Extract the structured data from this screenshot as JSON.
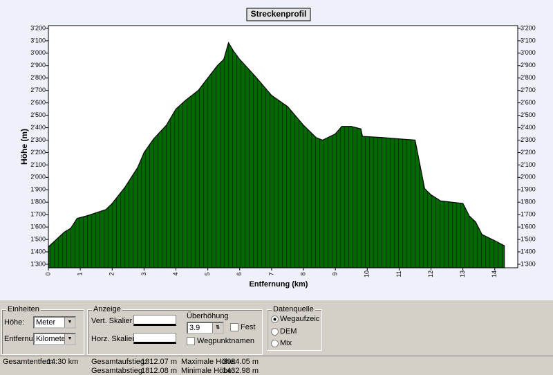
{
  "chart_data": {
    "type": "area",
    "title": "Streckenprofil",
    "xlabel": "Entfernung (km)",
    "ylabel": "Höhe (m)",
    "color": "#006a00",
    "x": [
      0,
      0.5,
      0.7,
      0.9,
      1.2,
      1.8,
      2.0,
      2.4,
      2.8,
      3.0,
      3.3,
      3.7,
      4.0,
      4.3,
      4.7,
      5.0,
      5.3,
      5.5,
      5.65,
      5.8,
      6.0,
      6.5,
      7.0,
      7.5,
      8.0,
      8.4,
      8.6,
      9.0,
      9.2,
      9.5,
      9.8,
      9.85,
      10.5,
      11.0,
      11.5,
      11.8,
      12.0,
      12.3,
      13.0,
      13.2,
      13.4,
      13.6,
      14.0,
      14.3
    ],
    "values": [
      1440,
      1560,
      1590,
      1670,
      1690,
      1740,
      1790,
      1920,
      2080,
      2200,
      2310,
      2420,
      2550,
      2620,
      2700,
      2800,
      2900,
      2950,
      3084,
      3020,
      2950,
      2810,
      2660,
      2570,
      2420,
      2320,
      2300,
      2350,
      2410,
      2410,
      2390,
      2330,
      2320,
      2310,
      2300,
      1910,
      1860,
      1810,
      1790,
      1690,
      1640,
      1540,
      1490,
      1450
    ],
    "xlim": [
      0,
      14.72
    ],
    "ylim": [
      1272,
      3222
    ],
    "xticks": [
      0,
      1,
      2,
      3,
      4,
      5,
      6,
      7,
      8,
      9,
      10,
      11,
      12,
      13,
      14
    ],
    "yticks": [
      {
        "value": 1300,
        "label": "1'300"
      },
      {
        "value": 1400,
        "label": "1'400"
      },
      {
        "value": 1500,
        "label": "1'500"
      },
      {
        "value": 1600,
        "label": "1'600"
      },
      {
        "value": 1700,
        "label": "1'700"
      },
      {
        "value": 1800,
        "label": "1'800"
      },
      {
        "value": 1900,
        "label": "1'900"
      },
      {
        "value": 2000,
        "label": "2'000"
      },
      {
        "value": 2100,
        "label": "2'100"
      },
      {
        "value": 2200,
        "label": "2'200"
      },
      {
        "value": 2300,
        "label": "2'300"
      },
      {
        "value": 2400,
        "label": "2'400"
      },
      {
        "value": 2500,
        "label": "2'500"
      },
      {
        "value": 2600,
        "label": "2'600"
      },
      {
        "value": 2700,
        "label": "2'700"
      },
      {
        "value": 2800,
        "label": "2'800"
      },
      {
        "value": 2900,
        "label": "2'900"
      },
      {
        "value": 3000,
        "label": "3'000"
      },
      {
        "value": 3100,
        "label": "3'100"
      },
      {
        "value": 3200,
        "label": "3'200"
      }
    ]
  },
  "panel": {
    "units": {
      "title": "Einheiten",
      "height_label": "Höhe:",
      "height_value": "Meter",
      "dist_label": "Entfernung:",
      "dist_value": "Kilometer"
    },
    "display": {
      "title": "Anzeige",
      "vert": "Vert. Skalier",
      "horz": "Horz. Skalier",
      "exag_label": "Überhöhung",
      "exag_value": "3.9",
      "fix": "Festst",
      "waypoints": "Wegpunktnamen"
    },
    "source": {
      "title": "Datenquelle",
      "options": [
        "Wegaufzeichn",
        "DEM",
        "Mix"
      ]
    }
  },
  "status": [
    [
      "Gesamtentfern.:",
      "14.30 km"
    ],
    [
      "Gesamtaufstieg:",
      "1812.07 m"
    ],
    [
      "Gesamtabstieg:",
      "1812.08 m"
    ],
    [
      "Maximale Höhe:",
      "3084.05 m"
    ],
    [
      "Minimale Höhe:",
      "1432.98 m"
    ]
  ]
}
